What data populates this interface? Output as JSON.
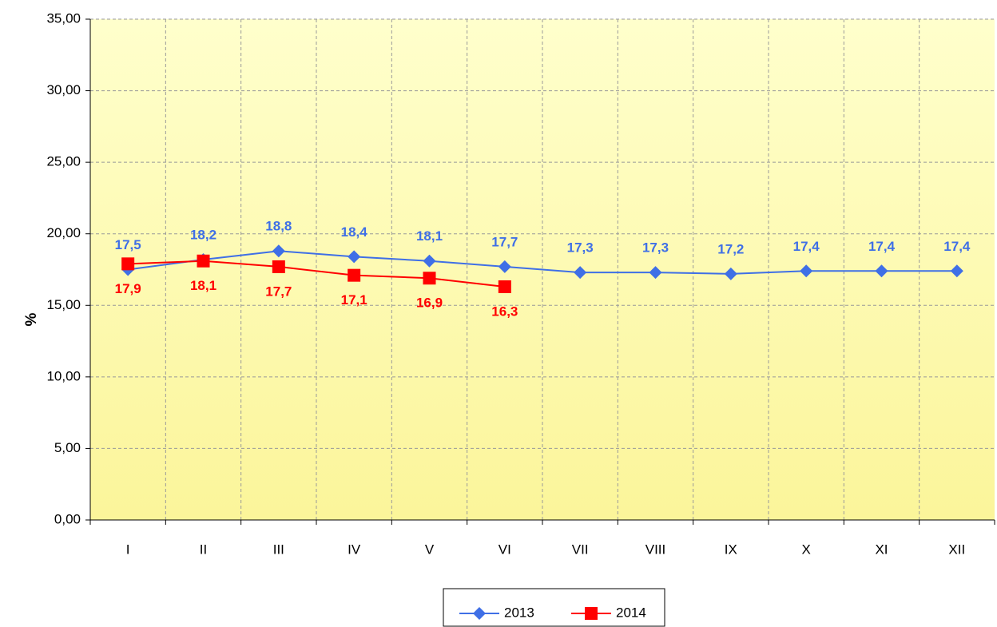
{
  "chart_data": {
    "type": "line",
    "y_label": "%",
    "categories": [
      "I",
      "II",
      "III",
      "IV",
      "V",
      "VI",
      "VII",
      "VIII",
      "IX",
      "X",
      "XI",
      "XII"
    ],
    "series": [
      {
        "name": "2013",
        "color": "#3f6fe6",
        "marker": "diamond",
        "values": [
          17.5,
          18.2,
          18.8,
          18.4,
          18.1,
          17.7,
          17.3,
          17.3,
          17.2,
          17.4,
          17.4,
          17.4
        ],
        "value_labels": [
          "17,5",
          "18,2",
          "18,8",
          "18,4",
          "18,1",
          "17,7",
          "17,3",
          "17,3",
          "17,2",
          "17,4",
          "17,4",
          "17,4"
        ]
      },
      {
        "name": "2014",
        "color": "#ff0000",
        "marker": "square",
        "values": [
          17.9,
          18.1,
          17.7,
          17.1,
          16.9,
          16.3,
          null,
          null,
          null,
          null,
          null,
          null
        ],
        "value_labels": [
          "17,9",
          "18,1",
          "17,7",
          "17,1",
          "16,9",
          "16,3",
          null,
          null,
          null,
          null,
          null,
          null
        ]
      }
    ],
    "ylim": [
      0,
      35
    ],
    "yticks": [
      {
        "value": 0,
        "label": "0,00"
      },
      {
        "value": 5,
        "label": "5,00"
      },
      {
        "value": 10,
        "label": "10,00"
      },
      {
        "value": 15,
        "label": "15,00"
      },
      {
        "value": 20,
        "label": "20,00"
      },
      {
        "value": 25,
        "label": "25,00"
      },
      {
        "value": 30,
        "label": "30,00"
      },
      {
        "value": 35,
        "label": "35,00"
      }
    ],
    "grid": true,
    "legend": "bottom"
  }
}
